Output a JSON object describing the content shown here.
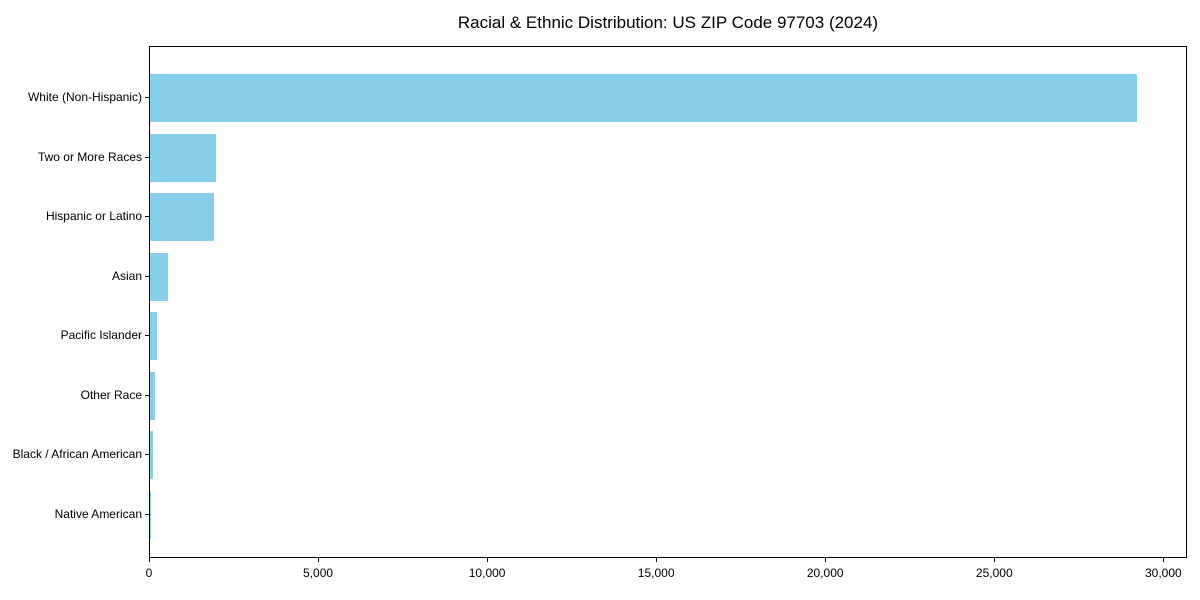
{
  "window": {
    "title": "Racial & Ethnic Distribution: US ZIP Code 97703 (2024)"
  },
  "colors": {
    "bar": "#87CEEB",
    "axis": "#000000",
    "background": "#FFFFFF",
    "text": "#000000"
  },
  "chart_data": {
    "type": "bar",
    "orientation": "horizontal",
    "title": "Racial & Ethnic Distribution: US ZIP Code 97703 (2024)",
    "xlabel": "",
    "ylabel": "",
    "categories": [
      "White (Non-Hispanic)",
      "Two or More Races",
      "Hispanic or Latino",
      "Asian",
      "Pacific Islander",
      "Other Race",
      "Black / African American",
      "Native American"
    ],
    "values": [
      29200,
      1960,
      1880,
      520,
      200,
      160,
      95,
      25
    ],
    "xlim": [
      0,
      30700
    ],
    "xticks": [
      0,
      5000,
      10000,
      15000,
      20000,
      25000,
      30000
    ],
    "xtick_labels": [
      "0",
      "5,000",
      "10,000",
      "15,000",
      "20,000",
      "25,000",
      "30,000"
    ],
    "grid": false,
    "legend": null,
    "bar_color": "#87CEEB"
  }
}
